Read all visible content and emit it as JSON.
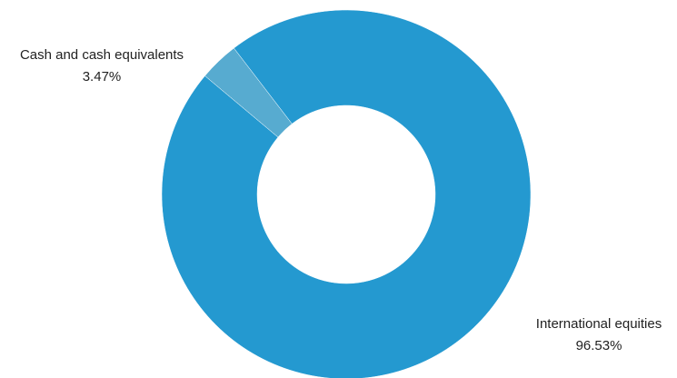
{
  "chart_data": {
    "type": "pie",
    "style": "donut",
    "title": "",
    "start_angle_note": "clockwise from top",
    "slices": [
      {
        "label": "International equities",
        "value": 96.53,
        "value_label": "96.53%",
        "color": "#2499d0"
      },
      {
        "label": "Cash and cash equivalents",
        "value": 3.47,
        "value_label": "3.47%",
        "color": "#57abd0"
      }
    ],
    "legend": "none"
  },
  "colors": {
    "background": "#ffffff",
    "text": "#222222"
  }
}
